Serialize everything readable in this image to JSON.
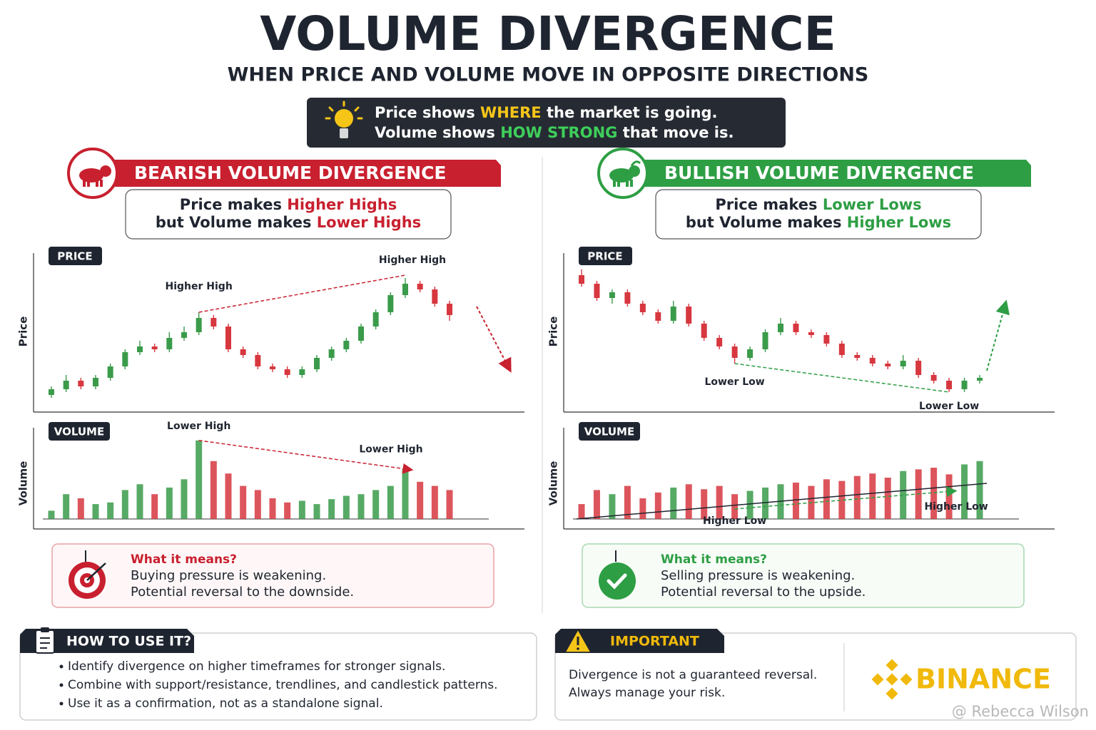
{
  "title": "VOLUME DIVERGENCE",
  "subtitle": "WHEN PRICE AND VOLUME MOVE IN OPPOSITE DIRECTIONS",
  "tip": {
    "line1": [
      "Price shows ",
      "WHERE",
      " the market is going."
    ],
    "line2": [
      "Volume shows ",
      "HOW STRONG",
      " that move is."
    ]
  },
  "bearish": {
    "heading": "BEARISH VOLUME DIVERGENCE",
    "rule": {
      "line1": [
        "Price makes ",
        "Higher Highs"
      ],
      "line2": [
        "but Volume makes ",
        "Lower Highs"
      ]
    },
    "price_tag": "PRICE",
    "price_axis": "Price",
    "price_labels": [
      "Higher High",
      "Higher High"
    ],
    "volume_tag": "VOLUME",
    "volume_axis": "Volume",
    "volume_labels": [
      "Lower High",
      "Lower High"
    ],
    "up_color": "#3a9b4a",
    "down_color": "#d7373f",
    "price": {
      "ylim": [
        0,
        100
      ],
      "open": [
        8,
        12,
        18,
        14,
        20,
        28,
        38,
        42,
        40,
        48,
        52,
        62,
        56,
        40,
        36,
        28,
        26,
        22,
        26,
        34,
        40,
        46,
        56,
        66,
        78,
        86,
        82,
        72
      ],
      "close": [
        12,
        18,
        14,
        20,
        28,
        38,
        42,
        40,
        48,
        52,
        62,
        56,
        40,
        36,
        28,
        26,
        22,
        26,
        34,
        40,
        46,
        56,
        66,
        78,
        86,
        82,
        72,
        64
      ],
      "high": [
        14,
        22,
        20,
        22,
        30,
        40,
        46,
        44,
        52,
        56,
        66,
        64,
        58,
        42,
        38,
        30,
        28,
        28,
        36,
        42,
        48,
        58,
        68,
        80,
        90,
        88,
        84,
        74
      ],
      "low": [
        6,
        10,
        12,
        12,
        18,
        26,
        36,
        38,
        38,
        46,
        50,
        54,
        38,
        34,
        26,
        24,
        20,
        20,
        24,
        32,
        38,
        44,
        54,
        64,
        76,
        80,
        70,
        60
      ]
    },
    "volume": {
      "ylim": [
        0,
        100
      ],
      "values": [
        10,
        30,
        25,
        18,
        20,
        35,
        42,
        30,
        38,
        48,
        95,
        70,
        55,
        40,
        35,
        25,
        20,
        22,
        18,
        24,
        28,
        30,
        35,
        40,
        60,
        45,
        40,
        35
      ]
    },
    "meaning": {
      "title": "What it means?",
      "lines": [
        "Buying pressure is weakening.",
        "Potential reversal to the downside."
      ]
    }
  },
  "bullish": {
    "heading": "BULLISH VOLUME DIVERGENCE",
    "rule": {
      "line1": [
        "Price makes ",
        "Lower Lows"
      ],
      "line2": [
        "but Volume makes ",
        "Higher Lows"
      ]
    },
    "price_tag": "PRICE",
    "price_axis": "Price",
    "price_labels": [
      "Lower Low",
      "Lower Low"
    ],
    "volume_tag": "VOLUME",
    "volume_axis": "Volume",
    "volume_labels": [
      "Higher Low",
      "Higher Low"
    ],
    "up_color": "#3a9b4a",
    "down_color": "#d7373f",
    "price": {
      "ylim": [
        0,
        100
      ],
      "open": [
        92,
        86,
        76,
        80,
        72,
        66,
        60,
        70,
        58,
        48,
        42,
        34,
        40,
        52,
        58,
        52,
        50,
        44,
        36,
        34,
        30,
        28,
        32,
        22,
        18,
        12,
        18
      ],
      "close": [
        86,
        76,
        80,
        72,
        66,
        60,
        70,
        58,
        48,
        42,
        34,
        40,
        52,
        58,
        52,
        50,
        44,
        36,
        34,
        30,
        28,
        32,
        22,
        18,
        12,
        18,
        20
      ],
      "high": [
        96,
        88,
        82,
        82,
        74,
        68,
        74,
        72,
        60,
        50,
        44,
        42,
        54,
        62,
        60,
        54,
        52,
        46,
        38,
        36,
        32,
        36,
        34,
        24,
        20,
        20,
        22
      ],
      "low": [
        84,
        74,
        72,
        70,
        64,
        58,
        58,
        56,
        46,
        40,
        30,
        32,
        38,
        50,
        50,
        48,
        42,
        34,
        32,
        28,
        26,
        26,
        20,
        16,
        10,
        10,
        16
      ]
    },
    "volume": {
      "ylim": [
        0,
        100
      ],
      "values": [
        18,
        35,
        30,
        40,
        25,
        32,
        38,
        42,
        36,
        40,
        30,
        34,
        38,
        42,
        44,
        40,
        48,
        46,
        52,
        55,
        50,
        58,
        60,
        62,
        54,
        66,
        70
      ]
    },
    "meaning": {
      "title": "What it means?",
      "lines": [
        "Selling pressure is weakening.",
        "Potential reversal to the upside."
      ]
    }
  },
  "how_to_use": {
    "title": "HOW TO USE IT?",
    "items": [
      "Identify divergence on higher timeframes for stronger signals.",
      "Combine with support/resistance, trendlines, and candlestick patterns.",
      "Use it as a confirmation, not as a standalone signal."
    ]
  },
  "important": {
    "title": "IMPORTANT",
    "lines": [
      "Divergence is not a guaranteed reversal.",
      "Always manage your risk."
    ]
  },
  "brand": "BINANCE",
  "watermark": "@ Rebecca Wilson"
}
